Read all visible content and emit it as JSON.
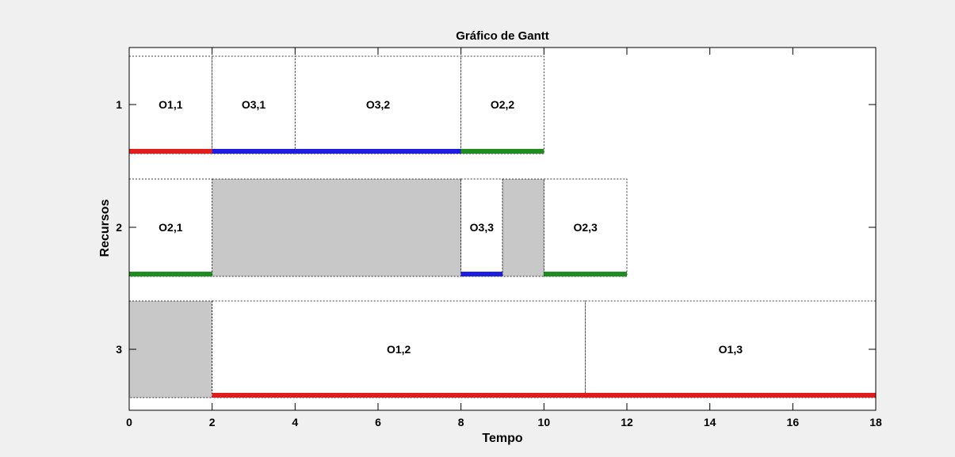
{
  "chart_data": {
    "type": "gantt",
    "title": "Gráfico de Gantt",
    "xlabel": "Tempo",
    "ylabel": "Recursos",
    "xlim": [
      0,
      18
    ],
    "xticks": [
      "0",
      "2",
      "4",
      "6",
      "8",
      "10",
      "12",
      "14",
      "16",
      "18"
    ],
    "resources": [
      "1",
      "2",
      "3"
    ],
    "colors": {
      "job1": "#e11e1e",
      "job2": "#1e8c1e",
      "job3": "#1e1ee1",
      "idle": "#c8c8c8"
    },
    "tasks": [
      {
        "resource": "1",
        "label": "O1,1",
        "start": 0,
        "end": 2,
        "job": "job1"
      },
      {
        "resource": "1",
        "label": "O3,1",
        "start": 2,
        "end": 4,
        "job": "job3"
      },
      {
        "resource": "1",
        "label": "O3,2",
        "start": 4,
        "end": 8,
        "job": "job3"
      },
      {
        "resource": "1",
        "label": "O2,2",
        "start": 8,
        "end": 10,
        "job": "job2"
      },
      {
        "resource": "2",
        "label": "O2,1",
        "start": 0,
        "end": 2,
        "job": "job2"
      },
      {
        "resource": "2",
        "label": "O3,3",
        "start": 8,
        "end": 9,
        "job": "job3"
      },
      {
        "resource": "2",
        "label": "O2,3",
        "start": 10,
        "end": 12,
        "job": "job2"
      },
      {
        "resource": "3",
        "label": "O1,2",
        "start": 2,
        "end": 11,
        "job": "job1"
      },
      {
        "resource": "3",
        "label": "O1,3",
        "start": 11,
        "end": 18,
        "job": "job1"
      }
    ],
    "idle": [
      {
        "resource": "2",
        "start": 2,
        "end": 8
      },
      {
        "resource": "2",
        "start": 9,
        "end": 10
      },
      {
        "resource": "3",
        "start": 0,
        "end": 2
      }
    ]
  }
}
